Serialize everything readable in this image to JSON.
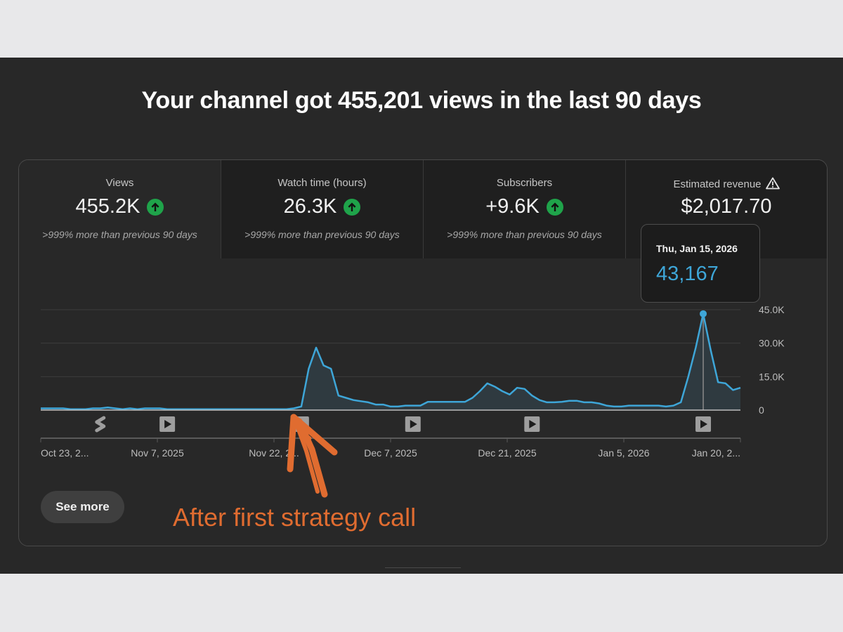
{
  "headline": "Your channel got 455,201 views in the last 90 days",
  "tabs": [
    {
      "label": "Views",
      "value": "455.2K",
      "trend_icon": "arrow-up-circle-icon",
      "note": ">999% more than previous 90 days",
      "selected": true
    },
    {
      "label": "Watch time (hours)",
      "value": "26.3K",
      "trend_icon": "arrow-up-circle-icon",
      "note": ">999% more than previous 90 days",
      "selected": false
    },
    {
      "label": "Subscribers",
      "value": "+9.6K",
      "trend_icon": "arrow-up-circle-icon",
      "note": ">999% more than previous 90 days",
      "selected": false
    },
    {
      "label": "Estimated revenue",
      "value": "$2,017.70",
      "label_icon": "warning-icon",
      "selected": false
    }
  ],
  "tooltip": {
    "date": "Thu, Jan 15, 2026",
    "value": "43,167"
  },
  "see_more_label": "See more",
  "annotation": "After first strategy call",
  "colors": {
    "line": "#3ea6d8",
    "trend_up": "#1fa34a",
    "annotation": "#e06c30"
  },
  "chart_data": {
    "type": "area",
    "x_tick_labels": [
      "Oct 23, 2...",
      "Nov 7, 2025",
      "Nov 22, 2...",
      "Dec 7, 2025",
      "Dec 21, 2025",
      "Jan 5, 2026",
      "Jan 20, 2..."
    ],
    "y_tick_labels": [
      "45.0K",
      "30.0K",
      "15.0K",
      "0"
    ],
    "ylim": [
      0,
      45000
    ],
    "grid": true,
    "values": [
      800,
      800,
      800,
      800,
      400,
      400,
      400,
      800,
      800,
      1200,
      800,
      400,
      800,
      400,
      800,
      800,
      800,
      400,
      400,
      400,
      400,
      400,
      400,
      400,
      400,
      400,
      400,
      400,
      400,
      400,
      400,
      400,
      400,
      400,
      800,
      1600,
      18500,
      28000,
      20000,
      18500,
      6500,
      5500,
      4500,
      4000,
      3500,
      2500,
      2500,
      1600,
      1600,
      2000,
      2000,
      2000,
      3700,
      3700,
      3700,
      3700,
      3700,
      3700,
      5500,
      8500,
      12000,
      10500,
      8500,
      7000,
      10000,
      9500,
      6500,
      4500,
      3500,
      3500,
      3700,
      4200,
      4200,
      3500,
      3500,
      3000,
      2000,
      1600,
      1600,
      2000,
      2000,
      2000,
      2000,
      2000,
      1600,
      2000,
      3500,
      15000,
      28000,
      43167,
      27000,
      12500,
      12000,
      9000,
      10000
    ],
    "highlight": {
      "index": 89,
      "value": 43167
    },
    "markers": [
      {
        "type": "shorts",
        "icon": "shorts-icon",
        "index": 8
      },
      {
        "type": "video",
        "icon": "video-play-icon",
        "index": 17
      },
      {
        "type": "video",
        "icon": "video-play-icon",
        "index": 35
      },
      {
        "type": "video",
        "icon": "video-play-icon",
        "index": 50
      },
      {
        "type": "video",
        "icon": "video-play-icon",
        "index": 66
      },
      {
        "type": "video",
        "icon": "video-play-icon",
        "index": 89
      }
    ]
  }
}
